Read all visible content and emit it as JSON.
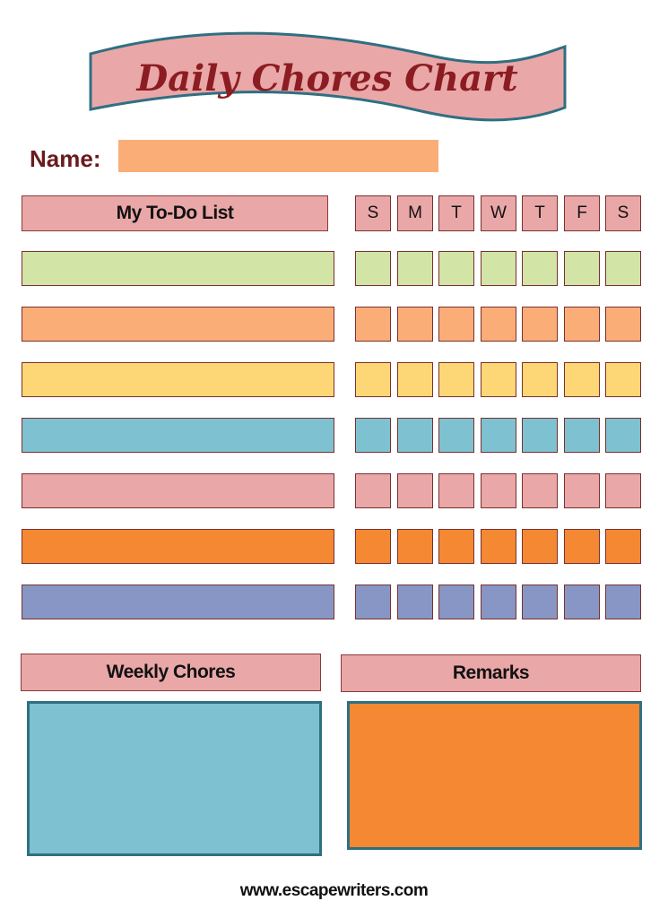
{
  "title": "Daily Chores Chart",
  "name_label": "Name:",
  "name_value": "",
  "todo_header": "My To-Do List",
  "days": [
    "S",
    "M",
    "T",
    "W",
    "T",
    "F",
    "S"
  ],
  "row_colors": [
    "#d2e4a6",
    "#fbad78",
    "#fdd775",
    "#7ec2d1",
    "#eaa7a8",
    "#f58832",
    "#8796c4"
  ],
  "colors": {
    "header": "#eaa7a8",
    "title_text": "#8b1d22",
    "banner_border": "#2f6f82",
    "name_field": "#fbad78",
    "weekly_box": "#7ec2d1",
    "remarks_box": "#f58832"
  },
  "weekly_header": "Weekly Chores",
  "remarks_header": "Remarks",
  "footer": "www.escapewriters.com"
}
